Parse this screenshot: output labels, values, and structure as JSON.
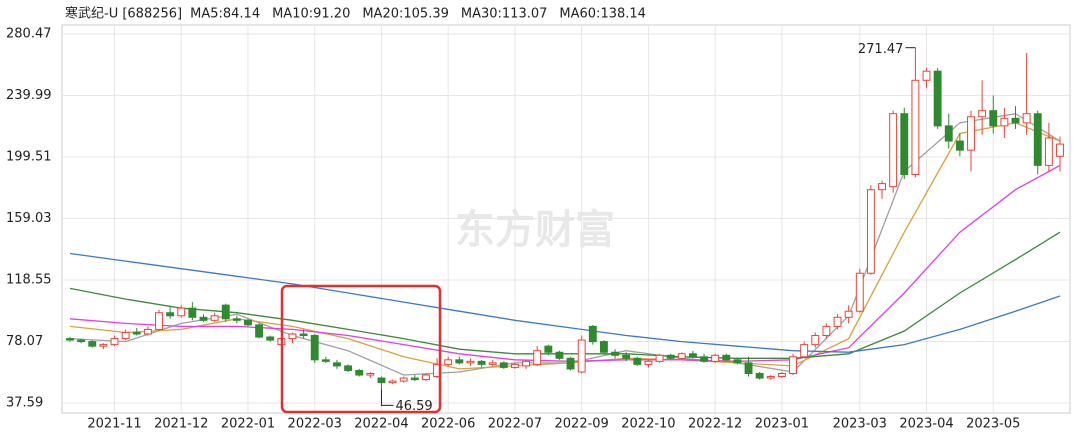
{
  "chart_data": {
    "type": "candlestick",
    "title": "寒武纪-U [688256]",
    "watermark": "东方财富",
    "up_color": "#e8443a",
    "down_color": "#2f8a2f",
    "grid": true,
    "ylim": [
      31,
      286.4
    ],
    "yticks": [
      37.59,
      78.07,
      118.55,
      159.03,
      199.51,
      239.99,
      280.47
    ],
    "categories": [
      null,
      null,
      null,
      null,
      "2021-11",
      null,
      null,
      null,
      null,
      null,
      "2021-12",
      null,
      null,
      null,
      null,
      null,
      "2022-01",
      null,
      null,
      null,
      null,
      null,
      "2022-03",
      null,
      null,
      null,
      null,
      null,
      "2022-04",
      null,
      null,
      null,
      null,
      null,
      "2022-06",
      null,
      null,
      null,
      null,
      null,
      "2022-07",
      null,
      null,
      null,
      null,
      null,
      "2022-09",
      null,
      null,
      null,
      null,
      null,
      "2022-10",
      null,
      null,
      null,
      null,
      null,
      "2022-12",
      null,
      null,
      null,
      null,
      null,
      "2023-01",
      null,
      null,
      null,
      null,
      null,
      null,
      "2023-03",
      null,
      null,
      null,
      null,
      null,
      "2023-04",
      null,
      null,
      null,
      null,
      null,
      "2023-05",
      null,
      null,
      null,
      null,
      null,
      null
    ],
    "candles": [
      [
        80,
        81,
        78,
        79
      ],
      [
        79,
        80,
        77,
        78
      ],
      [
        78,
        79,
        74,
        75
      ],
      [
        75,
        77,
        73,
        76
      ],
      [
        76,
        82,
        75,
        80
      ],
      [
        80,
        86,
        79,
        84
      ],
      [
        84,
        87,
        82,
        83
      ],
      [
        83,
        88,
        82,
        86
      ],
      [
        86,
        99,
        85,
        97
      ],
      [
        97,
        101,
        93,
        95
      ],
      [
        95,
        102,
        94,
        100
      ],
      [
        100,
        104,
        92,
        94
      ],
      [
        94,
        96,
        91,
        92
      ],
      [
        92,
        97,
        91,
        95
      ],
      [
        102,
        103,
        91,
        93
      ],
      [
        93,
        95,
        90,
        92
      ],
      [
        92,
        93,
        88,
        89
      ],
      [
        89,
        90,
        80,
        81
      ],
      [
        81,
        82,
        78,
        79
      ],
      [
        76,
        81,
        75,
        80
      ],
      [
        80,
        84,
        77,
        83
      ],
      [
        83,
        86,
        80,
        82
      ],
      [
        82,
        83,
        64,
        66
      ],
      [
        66,
        68,
        64,
        65
      ],
      [
        64,
        66,
        60,
        62
      ],
      [
        62,
        63,
        58,
        59
      ],
      [
        59,
        60,
        55,
        56
      ],
      [
        56,
        58,
        54,
        57
      ],
      [
        54,
        55,
        46.59,
        51
      ],
      [
        51,
        53,
        50,
        52
      ],
      [
        52,
        55,
        51,
        54
      ],
      [
        54,
        56,
        52,
        53
      ],
      [
        53,
        57,
        52,
        56
      ],
      [
        55,
        67,
        54,
        63
      ],
      [
        63,
        68,
        62,
        66
      ],
      [
        66,
        68,
        63,
        64
      ],
      [
        64,
        67,
        62,
        65
      ],
      [
        65,
        66,
        61,
        63
      ],
      [
        63,
        66,
        62,
        64
      ],
      [
        64,
        65,
        60,
        61
      ],
      [
        61,
        64,
        60,
        63
      ],
      [
        62,
        66,
        60,
        65
      ],
      [
        63,
        75,
        62,
        72
      ],
      [
        75,
        76,
        69,
        71
      ],
      [
        71,
        72,
        66,
        67
      ],
      [
        67,
        68,
        59,
        60
      ],
      [
        58,
        82,
        57,
        79
      ],
      [
        88,
        89,
        76,
        78
      ],
      [
        78,
        79,
        70,
        71
      ],
      [
        71,
        73,
        67,
        69
      ],
      [
        69,
        71,
        65,
        67
      ],
      [
        67,
        68,
        62,
        63
      ],
      [
        63,
        66,
        61,
        65
      ],
      [
        65,
        70,
        64,
        69
      ],
      [
        69,
        70,
        66,
        67
      ],
      [
        67,
        71,
        66,
        70
      ],
      [
        70,
        72,
        67,
        68
      ],
      [
        68,
        70,
        64,
        65
      ],
      [
        65,
        70,
        64,
        69
      ],
      [
        69,
        70,
        65,
        66
      ],
      [
        66,
        67,
        63,
        64
      ],
      [
        64,
        68,
        55,
        57
      ],
      [
        57,
        58,
        53,
        54
      ],
      [
        54,
        56,
        53,
        55
      ],
      [
        55,
        58,
        54,
        57
      ],
      [
        57,
        70,
        56,
        68
      ],
      [
        68,
        78,
        67,
        76
      ],
      [
        76,
        84,
        74,
        82
      ],
      [
        82,
        90,
        80,
        88
      ],
      [
        88,
        96,
        86,
        94
      ],
      [
        94,
        102,
        90,
        98
      ],
      [
        98,
        126,
        97,
        123
      ],
      [
        123,
        181,
        122,
        178
      ],
      [
        178,
        184,
        172,
        182
      ],
      [
        180,
        230,
        176,
        228
      ],
      [
        228,
        232,
        185,
        188
      ],
      [
        188,
        271.47,
        186,
        250
      ],
      [
        250,
        258,
        245,
        256
      ],
      [
        256,
        258,
        218,
        220
      ],
      [
        220,
        228,
        205,
        210
      ],
      [
        210,
        215,
        200,
        204
      ],
      [
        204,
        230,
        190,
        226
      ],
      [
        226,
        250,
        214,
        230
      ],
      [
        230,
        240,
        215,
        220
      ],
      [
        220,
        232,
        212,
        225
      ],
      [
        225,
        233,
        218,
        222
      ],
      [
        222,
        268,
        214,
        228
      ],
      [
        228,
        230,
        188,
        194
      ],
      [
        194,
        222,
        190,
        212
      ],
      [
        200,
        213,
        190,
        208
      ]
    ],
    "series": [
      {
        "name": "MA5:84.14",
        "color": "#a0a0a0",
        "x": [
          0,
          5,
          10,
          15,
          20,
          25,
          30,
          35,
          40,
          45,
          50,
          55,
          60,
          65,
          70,
          75,
          80,
          85,
          89
        ],
        "values": [
          80,
          78,
          90,
          96,
          82,
          72,
          56,
          58,
          64,
          64,
          72,
          67,
          64,
          58,
          95,
          190,
          222,
          228,
          210
        ]
      },
      {
        "name": "MA10:91.20",
        "color": "#d9a23a",
        "x": [
          0,
          5,
          10,
          15,
          20,
          25,
          30,
          35,
          40,
          45,
          50,
          55,
          60,
          65,
          70,
          75,
          80,
          85,
          89
        ],
        "values": [
          88,
          84,
          86,
          93,
          88,
          80,
          68,
          60,
          62,
          64,
          67,
          66,
          64,
          62,
          80,
          150,
          215,
          222,
          210
        ]
      },
      {
        "name": "MA20:105.39",
        "color": "#e040e0",
        "x": [
          0,
          5,
          10,
          15,
          20,
          25,
          30,
          35,
          40,
          45,
          50,
          55,
          60,
          65,
          70,
          75,
          80,
          85,
          89
        ],
        "values": [
          93,
          90,
          88,
          88,
          86,
          82,
          76,
          70,
          66,
          65,
          66,
          66,
          65,
          66,
          74,
          110,
          150,
          178,
          194
        ]
      },
      {
        "name": "MA30:113.07",
        "color": "#3a8a3a",
        "x": [
          0,
          5,
          10,
          15,
          20,
          25,
          30,
          35,
          40,
          45,
          50,
          55,
          60,
          65,
          70,
          75,
          80,
          85,
          89
        ],
        "values": [
          113,
          106,
          100,
          97,
          92,
          86,
          80,
          73,
          70,
          70,
          70,
          68,
          67,
          67,
          70,
          85,
          110,
          132,
          150
        ]
      },
      {
        "name": "MA60:138.14",
        "color": "#3a7ac8",
        "x": [
          0,
          5,
          10,
          15,
          20,
          25,
          30,
          35,
          40,
          45,
          50,
          55,
          60,
          65,
          70,
          75,
          80,
          85,
          89
        ],
        "values": [
          136,
          131,
          126,
          121,
          116,
          110,
          104,
          98,
          92,
          87,
          82,
          78,
          75,
          72,
          71,
          76,
          86,
          98,
          108
        ]
      }
    ]
  }
}
